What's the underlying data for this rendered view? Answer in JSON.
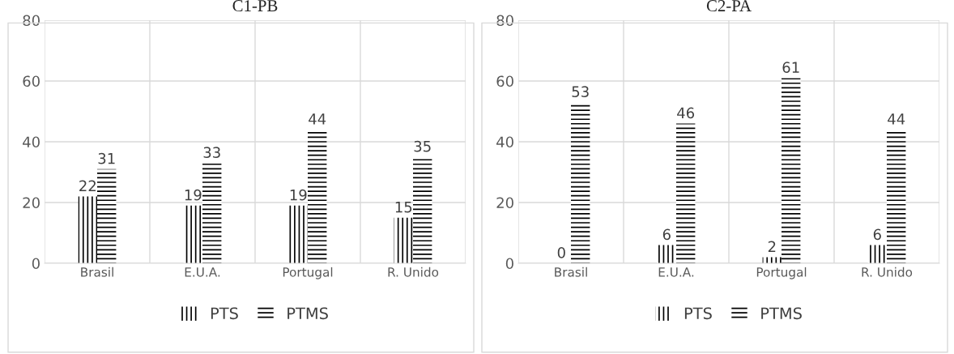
{
  "chart_data": [
    {
      "type": "bar",
      "title": "C1-PB",
      "categories": [
        "Brasil",
        "E.U.A.",
        "Portugal",
        "R. Unido"
      ],
      "series": [
        {
          "name": "PTS",
          "color": "#000000",
          "values": [
            22,
            19,
            19,
            15
          ]
        },
        {
          "name": "PTMS",
          "color": "#000000",
          "values": [
            31,
            33,
            44,
            35
          ]
        }
      ],
      "ylim": [
        0,
        80
      ],
      "yticks": [
        0,
        20,
        40,
        60,
        80
      ],
      "grid": true,
      "legend": "bottom",
      "data_labels": true
    },
    {
      "type": "bar",
      "title": "C2-PA",
      "categories": [
        "Brasil",
        "E.U.A.",
        "Portugal",
        "R. Unido"
      ],
      "series": [
        {
          "name": "PTS",
          "color": "#000000",
          "values": [
            0,
            6,
            2,
            6
          ]
        },
        {
          "name": "PTMS",
          "color": "#000000",
          "values": [
            53,
            46,
            61,
            44
          ]
        }
      ],
      "ylim": [
        0,
        80
      ],
      "yticks": [
        0,
        20,
        40,
        60,
        80
      ],
      "grid": true,
      "legend": "bottom",
      "data_labels": true
    }
  ]
}
